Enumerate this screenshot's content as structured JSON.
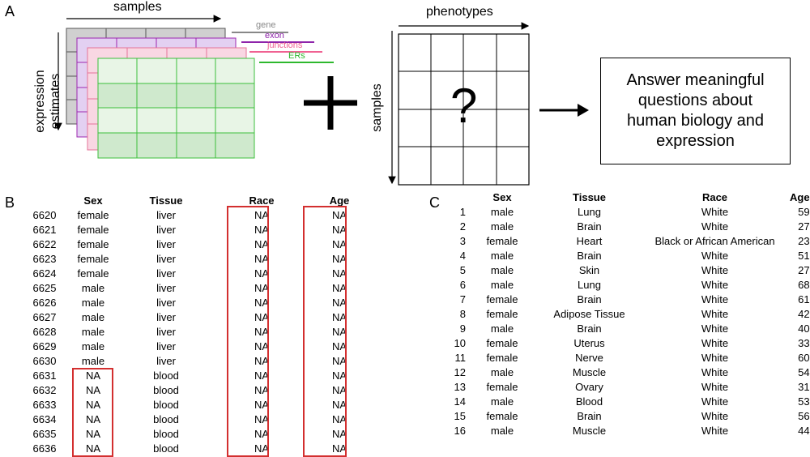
{
  "panels": {
    "a": "A",
    "b": "B",
    "c": "C"
  },
  "panel_a": {
    "samples_label": "samples",
    "expression_label": "expression estimates",
    "expression_line1": "expression",
    "expression_line2": "estimates",
    "legend": [
      {
        "label": "gene",
        "color": "#888888"
      },
      {
        "label": "exon",
        "color": "#8e24aa"
      },
      {
        "label": "junctions",
        "color": "#f06292"
      },
      {
        "label": "ERs",
        "color": "#2eb82e"
      }
    ],
    "plus": "+",
    "phenotypes_label": "phenotypes",
    "samples_vertical_label": "samples",
    "question": "?",
    "answer_line1": "Answer meaningful",
    "answer_line2": "questions about",
    "answer_line3": "human biology and",
    "answer_line4": "expression"
  },
  "table_b": {
    "headers": [
      "",
      "Sex",
      "Tissue",
      "Race",
      "Age"
    ],
    "rows": [
      [
        "6620",
        "female",
        "liver",
        "NA",
        "NA"
      ],
      [
        "6621",
        "female",
        "liver",
        "NA",
        "NA"
      ],
      [
        "6622",
        "female",
        "liver",
        "NA",
        "NA"
      ],
      [
        "6623",
        "female",
        "liver",
        "NA",
        "NA"
      ],
      [
        "6624",
        "female",
        "liver",
        "NA",
        "NA"
      ],
      [
        "6625",
        "male",
        "liver",
        "NA",
        "NA"
      ],
      [
        "6626",
        "male",
        "liver",
        "NA",
        "NA"
      ],
      [
        "6627",
        "male",
        "liver",
        "NA",
        "NA"
      ],
      [
        "6628",
        "male",
        "liver",
        "NA",
        "NA"
      ],
      [
        "6629",
        "male",
        "liver",
        "NA",
        "NA"
      ],
      [
        "6630",
        "male",
        "liver",
        "NA",
        "NA"
      ],
      [
        "6631",
        "NA",
        "blood",
        "NA",
        "NA"
      ],
      [
        "6632",
        "NA",
        "blood",
        "NA",
        "NA"
      ],
      [
        "6633",
        "NA",
        "blood",
        "NA",
        "NA"
      ],
      [
        "6634",
        "NA",
        "blood",
        "NA",
        "NA"
      ],
      [
        "6635",
        "NA",
        "blood",
        "NA",
        "NA"
      ],
      [
        "6636",
        "NA",
        "blood",
        "NA",
        "NA"
      ]
    ]
  },
  "table_c": {
    "headers": [
      "",
      "Sex",
      "Tissue",
      "Race",
      "Age"
    ],
    "rows": [
      [
        "1",
        "male",
        "Lung",
        "White",
        "59"
      ],
      [
        "2",
        "male",
        "Brain",
        "White",
        "27"
      ],
      [
        "3",
        "female",
        "Heart",
        "Black or African American",
        "23"
      ],
      [
        "4",
        "male",
        "Brain",
        "White",
        "51"
      ],
      [
        "5",
        "male",
        "Skin",
        "White",
        "27"
      ],
      [
        "6",
        "male",
        "Lung",
        "White",
        "68"
      ],
      [
        "7",
        "female",
        "Brain",
        "White",
        "61"
      ],
      [
        "8",
        "female",
        "Adipose Tissue",
        "White",
        "42"
      ],
      [
        "9",
        "male",
        "Brain",
        "White",
        "40"
      ],
      [
        "10",
        "female",
        "Uterus",
        "White",
        "33"
      ],
      [
        "11",
        "female",
        "Nerve",
        "White",
        "60"
      ],
      [
        "12",
        "male",
        "Muscle",
        "White",
        "54"
      ],
      [
        "13",
        "female",
        "Ovary",
        "White",
        "31"
      ],
      [
        "14",
        "male",
        "Blood",
        "White",
        "53"
      ],
      [
        "15",
        "female",
        "Brain",
        "White",
        "56"
      ],
      [
        "16",
        "male",
        "Muscle",
        "White",
        "44"
      ]
    ]
  }
}
